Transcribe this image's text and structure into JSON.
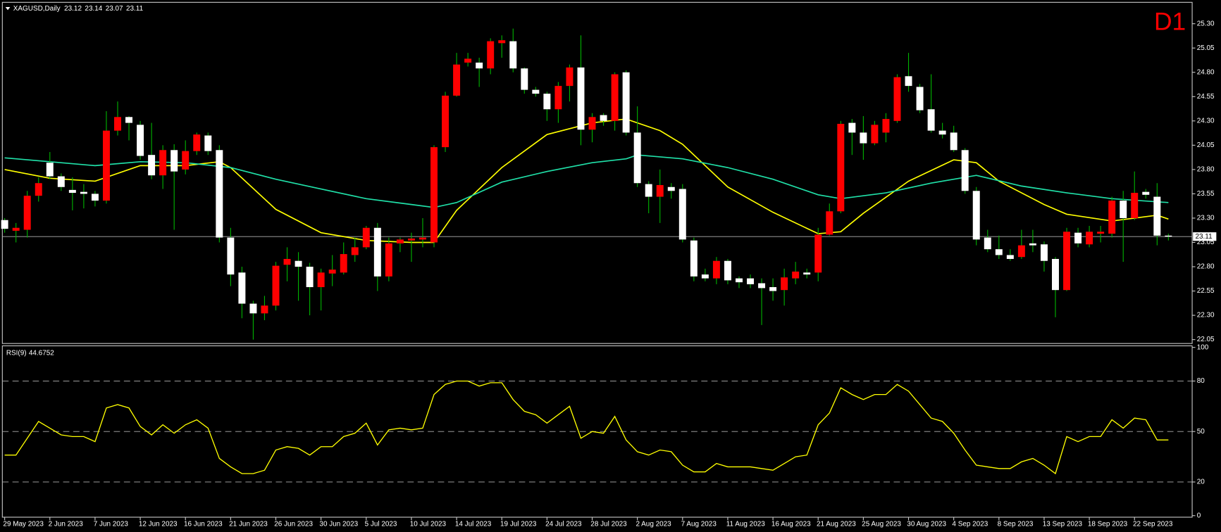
{
  "chart_data": [
    {
      "type": "candlestick",
      "title": "XAGUSD,Daily",
      "header_values": [
        23.12,
        23.14,
        23.07,
        23.11
      ],
      "timeframe": "D1",
      "categories": [
        "29 May 2023",
        null,
        null,
        null,
        "2 Jun 2023",
        null,
        null,
        null,
        "7 Jun 2023",
        null,
        null,
        null,
        "12 Jun 2023",
        null,
        null,
        null,
        "16 Jun 2023",
        null,
        null,
        null,
        "21 Jun 2023",
        null,
        null,
        null,
        "26 Jun 2023",
        null,
        null,
        null,
        "30 Jun 2023",
        null,
        null,
        null,
        "5 Jul 2023",
        null,
        null,
        null,
        "10 Jul 2023",
        null,
        null,
        null,
        "14 Jul 2023",
        null,
        null,
        null,
        "19 Jul 2023",
        null,
        null,
        null,
        "24 Jul 2023",
        null,
        null,
        null,
        "28 Jul 2023",
        null,
        null,
        null,
        "2 Aug 2023",
        null,
        null,
        null,
        "7 Aug 2023",
        null,
        null,
        null,
        "11 Aug 2023",
        null,
        null,
        null,
        "16 Aug 2023",
        null,
        null,
        null,
        "21 Aug 2023",
        null,
        null,
        null,
        "25 Aug 2023",
        null,
        null,
        null,
        "30 Aug 2023",
        null,
        null,
        null,
        "4 Sep 2023",
        null,
        null,
        null,
        "8 Sep 2023",
        null,
        null,
        null,
        "13 Sep 2023",
        null,
        null,
        null,
        "18 Sep 2023",
        null,
        null,
        null,
        "22 Sep 2023",
        null,
        null,
        null
      ],
      "ohlc": [
        [
          23.28,
          23.3,
          23.15,
          23.19
        ],
        [
          23.17,
          23.25,
          23.05,
          23.2
        ],
        [
          23.18,
          23.58,
          23.1,
          23.53
        ],
        [
          23.53,
          23.72,
          23.47,
          23.66
        ],
        [
          23.87,
          23.98,
          23.7,
          23.73
        ],
        [
          23.73,
          23.76,
          23.58,
          23.62
        ],
        [
          23.59,
          23.72,
          23.38,
          23.56
        ],
        [
          23.57,
          23.65,
          23.4,
          23.55
        ],
        [
          23.55,
          23.58,
          23.42,
          23.48
        ],
        [
          23.48,
          24.4,
          23.45,
          24.2
        ],
        [
          24.2,
          24.5,
          24.15,
          24.34
        ],
        [
          24.34,
          24.35,
          24.1,
          24.28
        ],
        [
          24.26,
          24.3,
          23.9,
          23.94
        ],
        [
          23.95,
          24.28,
          23.7,
          23.74
        ],
        [
          23.74,
          24.05,
          23.6,
          24.0
        ],
        [
          24.0,
          24.06,
          23.18,
          23.78
        ],
        [
          23.8,
          24.1,
          23.75,
          23.99
        ],
        [
          23.99,
          24.18,
          23.95,
          24.16
        ],
        [
          24.15,
          24.18,
          23.95,
          23.99
        ],
        [
          24.0,
          24.05,
          23.05,
          23.1
        ],
        [
          23.1,
          23.2,
          22.6,
          22.72
        ],
        [
          22.74,
          22.8,
          22.27,
          22.42
        ],
        [
          22.42,
          22.45,
          22.05,
          22.32
        ],
        [
          22.32,
          22.5,
          22.25,
          22.4
        ],
        [
          22.4,
          22.85,
          22.35,
          22.81
        ],
        [
          22.82,
          23.0,
          22.65,
          22.88
        ],
        [
          22.86,
          22.95,
          22.45,
          22.8
        ],
        [
          22.8,
          22.84,
          22.3,
          22.59
        ],
        [
          22.59,
          22.78,
          22.35,
          22.74
        ],
        [
          22.73,
          22.92,
          22.6,
          22.77
        ],
        [
          22.74,
          23.05,
          22.72,
          22.93
        ],
        [
          22.92,
          23.1,
          22.85,
          23.0
        ],
        [
          23.0,
          23.22,
          22.98,
          23.2
        ],
        [
          23.2,
          23.25,
          22.55,
          22.7
        ],
        [
          22.7,
          23.1,
          22.65,
          23.04
        ],
        [
          23.04,
          23.1,
          22.95,
          23.08
        ],
        [
          23.07,
          23.15,
          22.85,
          23.09
        ],
        [
          23.08,
          23.3,
          23.0,
          23.1
        ],
        [
          23.05,
          24.05,
          23.0,
          24.03
        ],
        [
          24.03,
          24.6,
          23.98,
          24.56
        ],
        [
          24.56,
          25.0,
          24.55,
          24.88
        ],
        [
          24.9,
          25.0,
          24.86,
          24.94
        ],
        [
          24.9,
          24.95,
          24.65,
          24.84
        ],
        [
          24.84,
          25.15,
          24.78,
          25.12
        ],
        [
          25.1,
          25.18,
          24.95,
          25.13
        ],
        [
          25.12,
          25.25,
          24.8,
          24.84
        ],
        [
          24.84,
          24.85,
          24.58,
          24.62
        ],
        [
          24.62,
          24.65,
          24.55,
          24.58
        ],
        [
          24.58,
          24.6,
          24.3,
          24.42
        ],
        [
          24.42,
          24.7,
          24.28,
          24.66
        ],
        [
          24.66,
          24.88,
          24.5,
          24.85
        ],
        [
          24.85,
          25.18,
          24.05,
          24.21
        ],
        [
          24.21,
          24.38,
          24.08,
          24.34
        ],
        [
          24.36,
          24.38,
          24.25,
          24.3
        ],
        [
          24.3,
          24.8,
          24.2,
          24.78
        ],
        [
          24.8,
          24.82,
          24.15,
          24.18
        ],
        [
          24.18,
          24.45,
          23.62,
          23.66
        ],
        [
          23.65,
          23.68,
          23.35,
          23.52
        ],
        [
          23.52,
          23.8,
          23.25,
          23.64
        ],
        [
          23.62,
          23.66,
          23.5,
          23.58
        ],
        [
          23.6,
          23.65,
          23.05,
          23.08
        ],
        [
          23.07,
          23.1,
          22.65,
          22.7
        ],
        [
          22.72,
          22.78,
          22.65,
          22.68
        ],
        [
          22.68,
          22.9,
          22.62,
          22.86
        ],
        [
          22.86,
          22.88,
          22.62,
          22.66
        ],
        [
          22.68,
          22.7,
          22.58,
          22.64
        ],
        [
          22.68,
          22.72,
          22.58,
          22.62
        ],
        [
          22.63,
          22.68,
          22.2,
          22.58
        ],
        [
          22.59,
          22.68,
          22.45,
          22.55
        ],
        [
          22.56,
          22.78,
          22.4,
          22.69
        ],
        [
          22.68,
          22.85,
          22.62,
          22.75
        ],
        [
          22.74,
          22.78,
          22.68,
          22.72
        ],
        [
          22.74,
          23.2,
          22.65,
          23.13
        ],
        [
          23.13,
          23.45,
          23.12,
          23.37
        ],
        [
          23.37,
          24.3,
          23.35,
          24.27
        ],
        [
          24.28,
          24.32,
          23.95,
          24.18
        ],
        [
          24.18,
          24.35,
          23.9,
          24.07
        ],
        [
          24.07,
          24.3,
          24.05,
          24.26
        ],
        [
          24.18,
          24.38,
          24.08,
          24.32
        ],
        [
          24.3,
          24.78,
          24.28,
          24.75
        ],
        [
          24.76,
          25.0,
          24.6,
          24.66
        ],
        [
          24.65,
          24.68,
          24.38,
          24.41
        ],
        [
          24.42,
          24.78,
          24.18,
          24.2
        ],
        [
          24.2,
          24.28,
          24.12,
          24.16
        ],
        [
          24.18,
          24.25,
          23.98,
          24.0
        ],
        [
          24.0,
          24.02,
          23.55,
          23.58
        ],
        [
          23.58,
          23.62,
          23.02,
          23.08
        ],
        [
          23.1,
          23.18,
          22.95,
          22.98
        ],
        [
          22.98,
          23.12,
          22.88,
          22.92
        ],
        [
          22.92,
          22.98,
          22.86,
          22.88
        ],
        [
          22.9,
          23.18,
          22.88,
          23.02
        ],
        [
          23.04,
          23.18,
          22.95,
          23.02
        ],
        [
          23.03,
          23.06,
          22.75,
          22.86
        ],
        [
          22.88,
          22.9,
          22.28,
          22.56
        ],
        [
          22.56,
          23.2,
          22.55,
          23.16
        ],
        [
          23.15,
          23.2,
          23.0,
          23.04
        ],
        [
          23.03,
          23.22,
          23.0,
          23.16
        ],
        [
          23.14,
          23.22,
          23.05,
          23.16
        ],
        [
          23.14,
          23.52,
          23.1,
          23.48
        ],
        [
          23.48,
          23.58,
          22.85,
          23.3
        ],
        [
          23.3,
          23.78,
          23.28,
          23.56
        ],
        [
          23.57,
          23.6,
          23.5,
          23.54
        ],
        [
          23.52,
          23.66,
          23.02,
          23.12
        ],
        [
          23.12,
          23.14,
          23.07,
          23.11
        ]
      ],
      "up_color": "#ff0000",
      "down_color": "#ffffff",
      "wick_color": "#00b400",
      "moving_averages": [
        {
          "color": "#ffff00",
          "x": [
            0,
            4,
            8,
            12,
            16,
            19,
            20,
            24,
            28,
            32,
            36,
            38,
            40,
            44,
            48,
            52,
            55,
            58,
            60,
            64,
            68,
            72,
            74,
            76,
            80,
            84,
            86,
            88,
            92,
            94,
            98,
            100,
            102,
            103
          ],
          "values": [
            23.8,
            23.71,
            23.68,
            23.84,
            23.84,
            23.88,
            23.82,
            23.39,
            23.15,
            23.07,
            23.05,
            23.05,
            23.38,
            23.82,
            24.16,
            24.28,
            24.32,
            24.2,
            24.06,
            23.62,
            23.36,
            23.14,
            23.16,
            23.35,
            23.68,
            23.9,
            23.87,
            23.68,
            23.44,
            23.34,
            23.27,
            23.3,
            23.33,
            23.29
          ]
        },
        {
          "color": "#20e0a8",
          "x": [
            0,
            4,
            8,
            12,
            16,
            20,
            24,
            28,
            32,
            36,
            38,
            40,
            44,
            48,
            52,
            55,
            56,
            60,
            64,
            68,
            72,
            74,
            78,
            82,
            86,
            90,
            94,
            98,
            103
          ],
          "values": [
            23.92,
            23.88,
            23.84,
            23.88,
            23.87,
            23.82,
            23.7,
            23.6,
            23.5,
            23.44,
            23.41,
            23.46,
            23.67,
            23.78,
            23.87,
            23.91,
            23.95,
            23.91,
            23.82,
            23.7,
            23.54,
            23.5,
            23.56,
            23.66,
            23.74,
            23.63,
            23.56,
            23.5,
            23.46
          ]
        }
      ],
      "last_price": 23.11,
      "ylim": [
        22.01,
        25.52
      ],
      "yticks": [
        {
          "value": 25.3,
          "label": "25.30"
        },
        25.05,
        {
          "value": 24.8,
          "label": "24.80"
        },
        24.55,
        {
          "value": 24.3,
          "label": "24.30"
        },
        24.05,
        {
          "value": 23.8,
          "label": "23.80"
        },
        23.55,
        {
          "value": 23.3,
          "label": "23.30"
        },
        23.05,
        {
          "value": 22.8,
          "label": "22.80"
        },
        22.55,
        {
          "value": 22.3,
          "label": "22.30"
        },
        22.05
      ],
      "grid": false
    },
    {
      "type": "line",
      "title": "RSI(9)",
      "last_value": 44.6752,
      "color": "#ffff00",
      "values": [
        36,
        36,
        46,
        56,
        52,
        48,
        47,
        47,
        44,
        64,
        66,
        64,
        53,
        48,
        54,
        49,
        54,
        57,
        52,
        34,
        29,
        25,
        25,
        27,
        39,
        41,
        40,
        36,
        41,
        41,
        47,
        49,
        55,
        42,
        51,
        52,
        51,
        52,
        72,
        78,
        80,
        80,
        77,
        79,
        79,
        69,
        62,
        60,
        55,
        60,
        65,
        46,
        50,
        49,
        59,
        45,
        38,
        36,
        39,
        38,
        30,
        26,
        26,
        31,
        29,
        29,
        29,
        28,
        27,
        31,
        35,
        36,
        54,
        61,
        76,
        72,
        69,
        72,
        72,
        78,
        74,
        66,
        58,
        56,
        49,
        39,
        30,
        29,
        28,
        28,
        32,
        34,
        30,
        25,
        47,
        44,
        47,
        47,
        57,
        52,
        58,
        57,
        45,
        45
      ],
      "ylim": [
        0,
        100
      ],
      "yticks": [
        0,
        20,
        50,
        80,
        100
      ],
      "levels": [
        20,
        50,
        80
      ]
    }
  ]
}
